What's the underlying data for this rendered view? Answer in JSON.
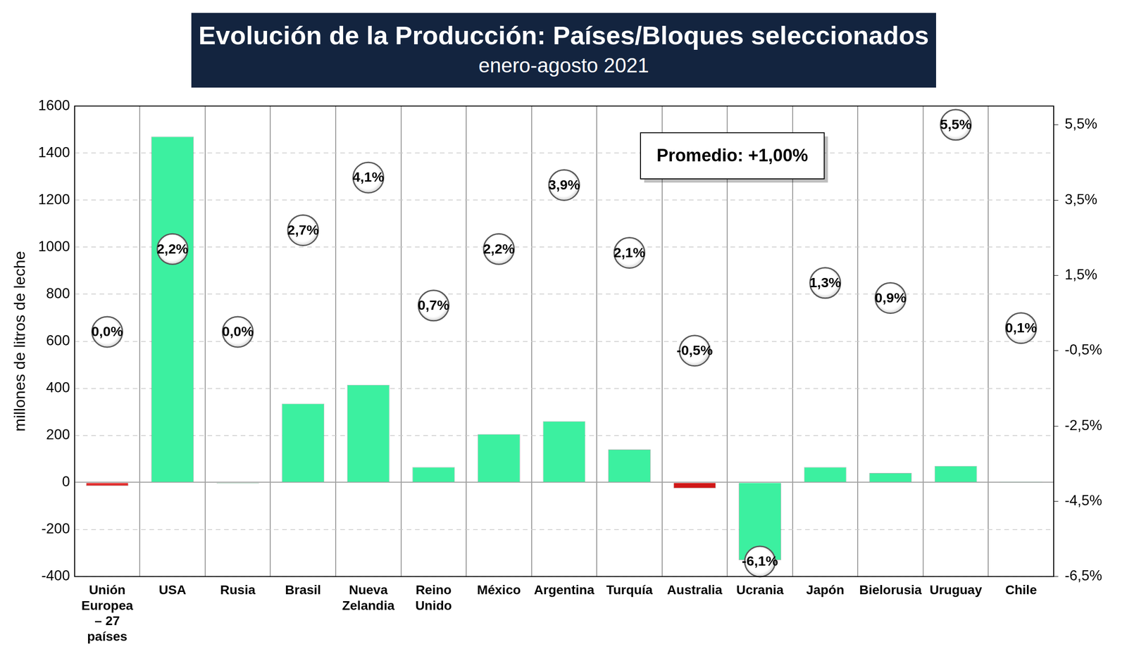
{
  "chart_data": {
    "type": "bar",
    "title": "Evolución de la Producción: Países/Bloques seleccionados",
    "subtitle": "enero-agosto 2021",
    "y_label": "millones de litros de leche",
    "annotations": [
      "Promedio: +1,00%"
    ],
    "categories": [
      "Unión\nEuropea\n– 27\npaíses",
      "USA",
      "Rusia",
      "Brasil",
      "Nueva\nZelandia",
      "Reino\nUnido",
      "México",
      "Argentina",
      "Turquía",
      "Australia",
      "Ucrania",
      "Japón",
      "Bielorusia",
      "Uruguay",
      "Chile"
    ],
    "series": [
      {
        "type": "bar",
        "colors": [
          "#e03030",
          "#3cf0a0",
          "#8ee8b8",
          "#3cf0a0",
          "#3cf0a0",
          "#3cf0a0",
          "#3cf0a0",
          "#3cf0a0",
          "#3cf0a0",
          "#d01818",
          "#3cf0a0",
          "#3cf0a0",
          "#3cf0a0",
          "#3cf0a0",
          "#3cf0a0"
        ],
        "values": [
          -15,
          1470,
          -5,
          335,
          415,
          65,
          205,
          260,
          140,
          -25,
          -330,
          65,
          40,
          70,
          1
        ]
      },
      {
        "type": "scatter",
        "axis": "y2",
        "marker": "circle",
        "color": "#ffffff",
        "data_labels": true,
        "values": [
          0.0,
          2.2,
          0.0,
          2.7,
          4.1,
          0.7,
          2.2,
          3.9,
          2.1,
          -0.5,
          -6.1,
          1.3,
          0.9,
          5.5,
          0.1
        ],
        "value_labels": [
          "0,0%",
          "2,2%",
          "0,0%",
          "2,7%",
          "4,1%",
          "0,7%",
          "2,2%",
          "3,9%",
          "2,1%",
          "-0,5%",
          "-6,1%",
          "1,3%",
          "0,9%",
          "5,5%",
          "0,1%"
        ]
      }
    ],
    "ylim": [
      -400,
      1600
    ],
    "yticks": [
      -400,
      -200,
      0,
      200,
      400,
      600,
      800,
      1000,
      1200,
      1400,
      1600
    ],
    "y2lim": [
      -6.5,
      6
    ],
    "y2ticks": [
      {
        "value": -6.5,
        "label": "-6,5%"
      },
      {
        "value": -4.5,
        "label": "-4,5%"
      },
      {
        "value": -2.5,
        "label": "-2,5%"
      },
      {
        "value": -0.5,
        "label": "-0,5%"
      },
      {
        "value": 1.5,
        "label": "1,5%"
      },
      {
        "value": 3.5,
        "label": "3,5%"
      },
      {
        "value": 5.5,
        "label": "5,5%"
      }
    ],
    "grid": true
  }
}
